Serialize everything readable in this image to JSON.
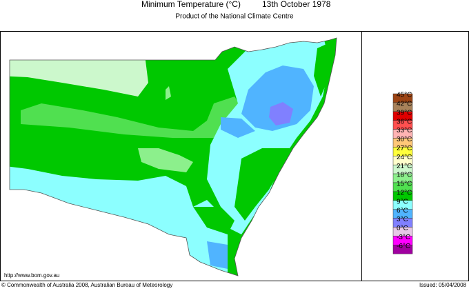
{
  "header": {
    "title": "Minimum Temperature (°C)",
    "date": "13th October 1978",
    "subtitle": "Product of the National Climate Centre"
  },
  "legend": [
    {
      "label": "45°C",
      "color": "#9c4414"
    },
    {
      "label": "42°C",
      "color": "#a8825a"
    },
    {
      "label": "39°C",
      "color": "#e00000"
    },
    {
      "label": "36°C",
      "color": "#ff5050"
    },
    {
      "label": "33°C",
      "color": "#ffb4b4"
    },
    {
      "label": "30°C",
      "color": "#ffc878"
    },
    {
      "label": "27°C",
      "color": "#ffff3c"
    },
    {
      "label": "24°C",
      "color": "#ffffcc"
    },
    {
      "label": "21°C",
      "color": "#ccf8cc"
    },
    {
      "label": "18°C",
      "color": "#8cf08c"
    },
    {
      "label": "15°C",
      "color": "#50e050"
    },
    {
      "label": "12°C",
      "color": "#00c800"
    },
    {
      "label": "9°C",
      "color": "#8cffff"
    },
    {
      "label": "6°C",
      "color": "#50b4ff"
    },
    {
      "label": "3°C",
      "color": "#8080ff"
    },
    {
      "label": "0°C",
      "color": "#e6c8e6"
    },
    {
      "label": "-3°C",
      "color": "#ff00ff"
    },
    {
      "label": "-6°C",
      "color": "#a000a0"
    }
  ],
  "footer": {
    "url": "http://www.bom.gov.au",
    "copyright": "© Commonwealth of Australia 2008, Australian Bureau of Meteorology",
    "issued": "Issued: 05/04/2008"
  }
}
